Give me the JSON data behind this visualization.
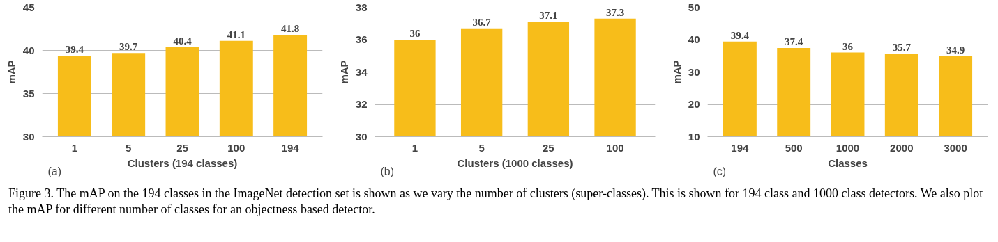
{
  "chart_data": [
    {
      "type": "bar",
      "categories": [
        "1",
        "5",
        "25",
        "100",
        "194"
      ],
      "values": [
        39.4,
        39.7,
        40.4,
        41.1,
        41.8
      ],
      "color": "#f7bd1a",
      "xlabel": "Clusters (194 classes)",
      "ylabel": "mAP",
      "ylim": [
        30,
        45
      ],
      "yticks": [
        30,
        35,
        40,
        45
      ],
      "grid": "y",
      "data_labels": true,
      "annotations": [
        "(a)"
      ]
    },
    {
      "type": "bar",
      "categories": [
        "1",
        "5",
        "25",
        "100"
      ],
      "values": [
        36,
        36.7,
        37.1,
        37.3
      ],
      "color": "#f7bd1a",
      "xlabel": "Clusters (1000 classes)",
      "ylabel": "mAP",
      "ylim": [
        30,
        38
      ],
      "yticks": [
        30,
        32,
        34,
        36,
        38
      ],
      "grid": "y",
      "data_labels": true,
      "annotations": [
        "(b)"
      ]
    },
    {
      "type": "bar",
      "categories": [
        "194",
        "500",
        "1000",
        "2000",
        "3000"
      ],
      "values": [
        39.4,
        37.4,
        36,
        35.7,
        34.9
      ],
      "color": "#f7bd1a",
      "xlabel": "Classes",
      "ylabel": "mAP",
      "ylim": [
        10,
        50
      ],
      "yticks": [
        10,
        20,
        30,
        40,
        50
      ],
      "grid": "y",
      "data_labels": true,
      "annotations": [
        "(c)",
        "Figure 3. The mAP on the 194 classes in the ImageNet detection set is shown as we vary the number of clusters (super-classes). This is shown for 194 class and 1000 class detectors. We also plot the mAP for different number of classes for an objectness based detector."
      ]
    }
  ]
}
